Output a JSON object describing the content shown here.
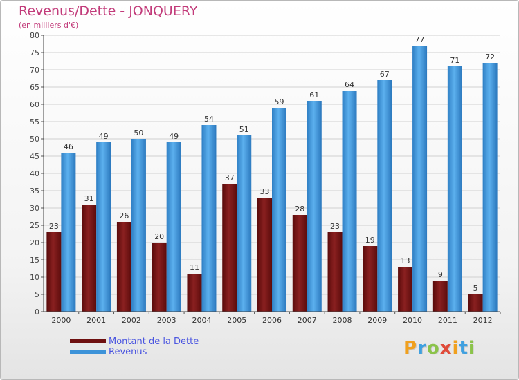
{
  "chart_data": {
    "type": "bar",
    "title": "Revenus/Dette - JONQUERY",
    "subtitle": "(en milliers d'€)",
    "categories": [
      "2000",
      "2001",
      "2002",
      "2003",
      "2004",
      "2005",
      "2006",
      "2007",
      "2008",
      "2009",
      "2010",
      "2011",
      "2012"
    ],
    "series": [
      {
        "name": "Montant de la Dette",
        "color": "#7a1515",
        "values": [
          23,
          31,
          26,
          20,
          11,
          37,
          33,
          28,
          23,
          19,
          13,
          9,
          5
        ]
      },
      {
        "name": "Revenus",
        "color": "#3d93d9",
        "values": [
          46,
          49,
          50,
          49,
          54,
          51,
          59,
          61,
          64,
          67,
          77,
          71,
          72
        ]
      }
    ],
    "ylim": [
      0,
      80
    ],
    "yticks": [
      0,
      5,
      10,
      15,
      20,
      25,
      30,
      35,
      40,
      45,
      50,
      55,
      60,
      65,
      70,
      75,
      80
    ],
    "grid": true,
    "legend_position": "bottom-left"
  },
  "logo": {
    "letters": [
      "P",
      "r",
      "o",
      "x",
      "i",
      "t",
      "i"
    ],
    "colors": [
      "#f0a01e",
      "#3fa0e0",
      "#8bc34a",
      "#e04b3a",
      "#f0a01e",
      "#3fa0e0",
      "#8bc34a"
    ]
  }
}
